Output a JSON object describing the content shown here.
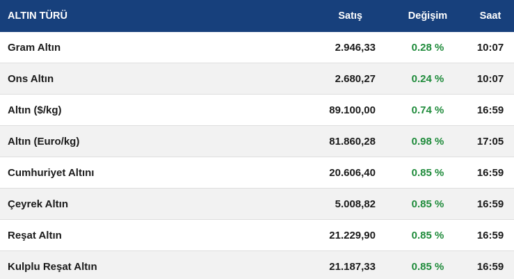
{
  "table": {
    "header": [
      "ALTIN TÜRÜ",
      "Satış",
      "Değişim",
      "Saat"
    ],
    "rows": [
      [
        "Gram Altın",
        "2.946,33",
        "0.28 %",
        "10:07"
      ],
      [
        "Ons Altın",
        "2.680,27",
        "0.24 %",
        "10:07"
      ],
      [
        "Altın ($/kg)",
        "89.100,00",
        "0.74 %",
        "16:59"
      ],
      [
        "Altın (Euro/kg)",
        "81.860,28",
        "0.98 %",
        "17:05"
      ],
      [
        "Cumhuriyet Altını",
        "20.606,40",
        "0.85 %",
        "16:59"
      ],
      [
        "Çeyrek Altın",
        "5.008,82",
        "0.85 %",
        "16:59"
      ],
      [
        "Reşat Altın",
        "21.229,90",
        "0.85 %",
        "16:59"
      ],
      [
        "Kulplu Reşat Altın",
        "21.187,33",
        "0.85 %",
        "16:59"
      ]
    ]
  }
}
